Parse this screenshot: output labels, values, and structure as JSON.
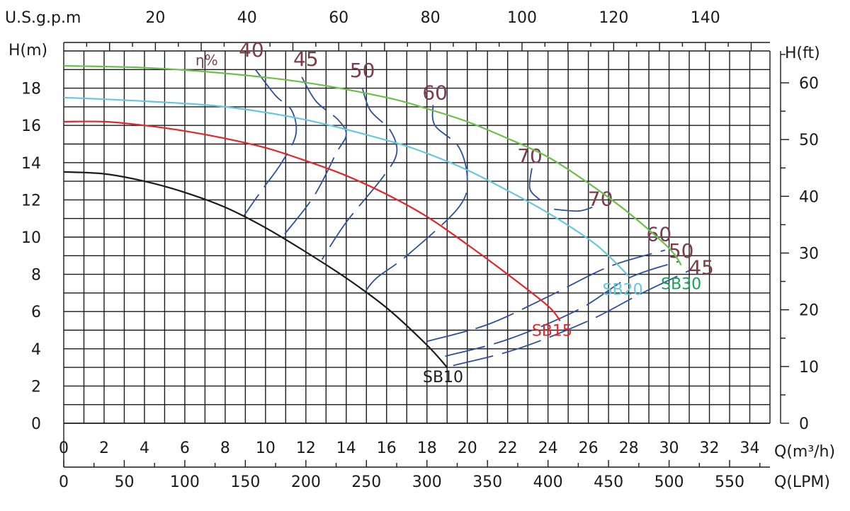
{
  "chart_data": {
    "type": "line",
    "x": {
      "label": "Q(m³/h)",
      "range": [
        0,
        35
      ],
      "ticks": [
        "0",
        "2",
        "4",
        "6",
        "8",
        "10",
        "12",
        "14",
        "16",
        "18",
        "20",
        "22",
        "24",
        "26",
        "28",
        "30",
        "32",
        "34"
      ]
    },
    "x_lpm": {
      "label": "Q(LPM)",
      "ticks": [
        "0",
        "50",
        "100",
        "150",
        "200",
        "250",
        "300",
        "350",
        "400",
        "450",
        "500",
        "550"
      ]
    },
    "x_gpm": {
      "label": "U.S.g.p.m",
      "ticks": [
        "20",
        "40",
        "60",
        "80",
        "100",
        "120",
        "140"
      ]
    },
    "y": {
      "label": "H(m)",
      "range": [
        0,
        20
      ],
      "ticks": [
        "0",
        "2",
        "4",
        "6",
        "8",
        "10",
        "12",
        "14",
        "16",
        "18"
      ]
    },
    "y_ft": {
      "label": "H(ft)",
      "ticks": [
        "0",
        "10",
        "20",
        "30",
        "40",
        "50",
        "60"
      ]
    },
    "grid": true,
    "series": [
      {
        "name": "SB10",
        "color": "#1c1c1c",
        "x": [
          0,
          2,
          4,
          6,
          8,
          10,
          12,
          14,
          16,
          18,
          19
        ],
        "y": [
          13.5,
          13.4,
          13.0,
          12.4,
          11.6,
          10.5,
          9.2,
          7.8,
          6.2,
          4.2,
          3.0
        ]
      },
      {
        "name": "SB15",
        "color": "#e3262b",
        "x": [
          0,
          2,
          4,
          6,
          8,
          10,
          12,
          14,
          16,
          18,
          20,
          22,
          24,
          24.6
        ],
        "y": [
          16.2,
          16.2,
          16.0,
          15.7,
          15.3,
          14.8,
          14.1,
          13.3,
          12.3,
          11.1,
          9.6,
          8.0,
          6.3,
          5.5
        ]
      },
      {
        "name": "SB20",
        "color": "#66c8dc",
        "x": [
          0,
          4,
          8,
          12,
          16,
          18,
          20,
          22,
          24,
          26,
          27,
          28
        ],
        "y": [
          17.5,
          17.3,
          17.0,
          16.3,
          15.2,
          14.5,
          13.6,
          12.5,
          11.3,
          9.9,
          9.0,
          7.9
        ]
      },
      {
        "name": "SB30",
        "color": "#6cbf4a",
        "x": [
          0,
          4,
          8,
          12,
          16,
          18,
          20,
          22,
          24,
          26,
          28,
          30,
          30.6
        ],
        "y": [
          19.2,
          19.1,
          18.8,
          18.3,
          17.5,
          16.9,
          16.2,
          15.3,
          14.3,
          12.9,
          11.3,
          9.4,
          8.5
        ]
      }
    ],
    "efficiency": {
      "label": "η%",
      "lines": [
        {
          "label": "40",
          "x": [
            9.5,
            10.5,
            11.3,
            11.5,
            10.8,
            9.8,
            8.9
          ],
          "y": [
            19.0,
            17.6,
            16.8,
            15.5,
            14.0,
            12.5,
            11.1
          ]
        },
        {
          "label": "45",
          "x": [
            11.8,
            12.5,
            13.6,
            14.0,
            13.5,
            12.4,
            10.9
          ],
          "y": [
            18.6,
            17.3,
            16.3,
            15.5,
            14.5,
            12.2,
            10.1
          ]
        },
        {
          "label": "50",
          "x": [
            14.8,
            15.2,
            16.2,
            16.5,
            15.8,
            14.0,
            12.8
          ],
          "y": [
            18.0,
            16.8,
            15.7,
            14.5,
            13.2,
            10.8,
            8.8
          ]
        },
        {
          "label": "60",
          "x": [
            18.3,
            18.4,
            19.6,
            20.0,
            19.5,
            17.0,
            15.5,
            14.9
          ],
          "y": [
            17.1,
            16.0,
            14.8,
            13.0,
            11.5,
            9.0,
            7.8,
            7.0
          ]
        },
        {
          "label": "70",
          "x": [
            23.2,
            23.1,
            23.6
          ],
          "y": [
            13.7,
            12.6,
            12.0
          ]
        },
        {
          "label": "70",
          "x": [
            24.3,
            25.5,
            26.2
          ],
          "y": [
            11.5,
            11.4,
            11.6
          ]
        },
        {
          "label": "60",
          "x": [
            18.0,
            21.0,
            24.0,
            27.0,
            29.8
          ],
          "y": [
            4.4,
            5.3,
            6.8,
            8.4,
            9.3
          ]
        },
        {
          "label": "50",
          "x": [
            18.9,
            22.0,
            25.5,
            28.0,
            30.5
          ],
          "y": [
            3.6,
            4.5,
            6.1,
            7.8,
            8.7
          ]
        },
        {
          "label": "45",
          "x": [
            19.3,
            22.5,
            26.0,
            28.5,
            31.0
          ],
          "y": [
            3.1,
            4.0,
            5.5,
            6.9,
            8.2
          ]
        }
      ],
      "label_points": [
        {
          "text": "40",
          "x": 9.3,
          "y": 19.7
        },
        {
          "text": "45",
          "x": 12.0,
          "y": 19.2
        },
        {
          "text": "50",
          "x": 14.8,
          "y": 18.6
        },
        {
          "text": "60",
          "x": 18.4,
          "y": 17.4
        },
        {
          "text": "70",
          "x": 23.1,
          "y": 14.0
        },
        {
          "text": "70",
          "x": 26.6,
          "y": 11.7
        },
        {
          "text": "60",
          "x": 29.5,
          "y": 9.8
        },
        {
          "text": "50",
          "x": 30.6,
          "y": 8.9
        },
        {
          "text": "45",
          "x": 31.6,
          "y": 8.0
        }
      ]
    },
    "curve_labels": [
      {
        "text": "SB10",
        "color": "#1c1c1c",
        "x": 18.8,
        "y": 2.2
      },
      {
        "text": "SB15",
        "color": "#e3262b",
        "x": 24.2,
        "y": 4.7
      },
      {
        "text": "SB20",
        "color": "#66c8dc",
        "x": 27.7,
        "y": 6.9
      },
      {
        "text": "SB30",
        "color": "#15a05a",
        "x": 30.6,
        "y": 7.2
      }
    ]
  }
}
